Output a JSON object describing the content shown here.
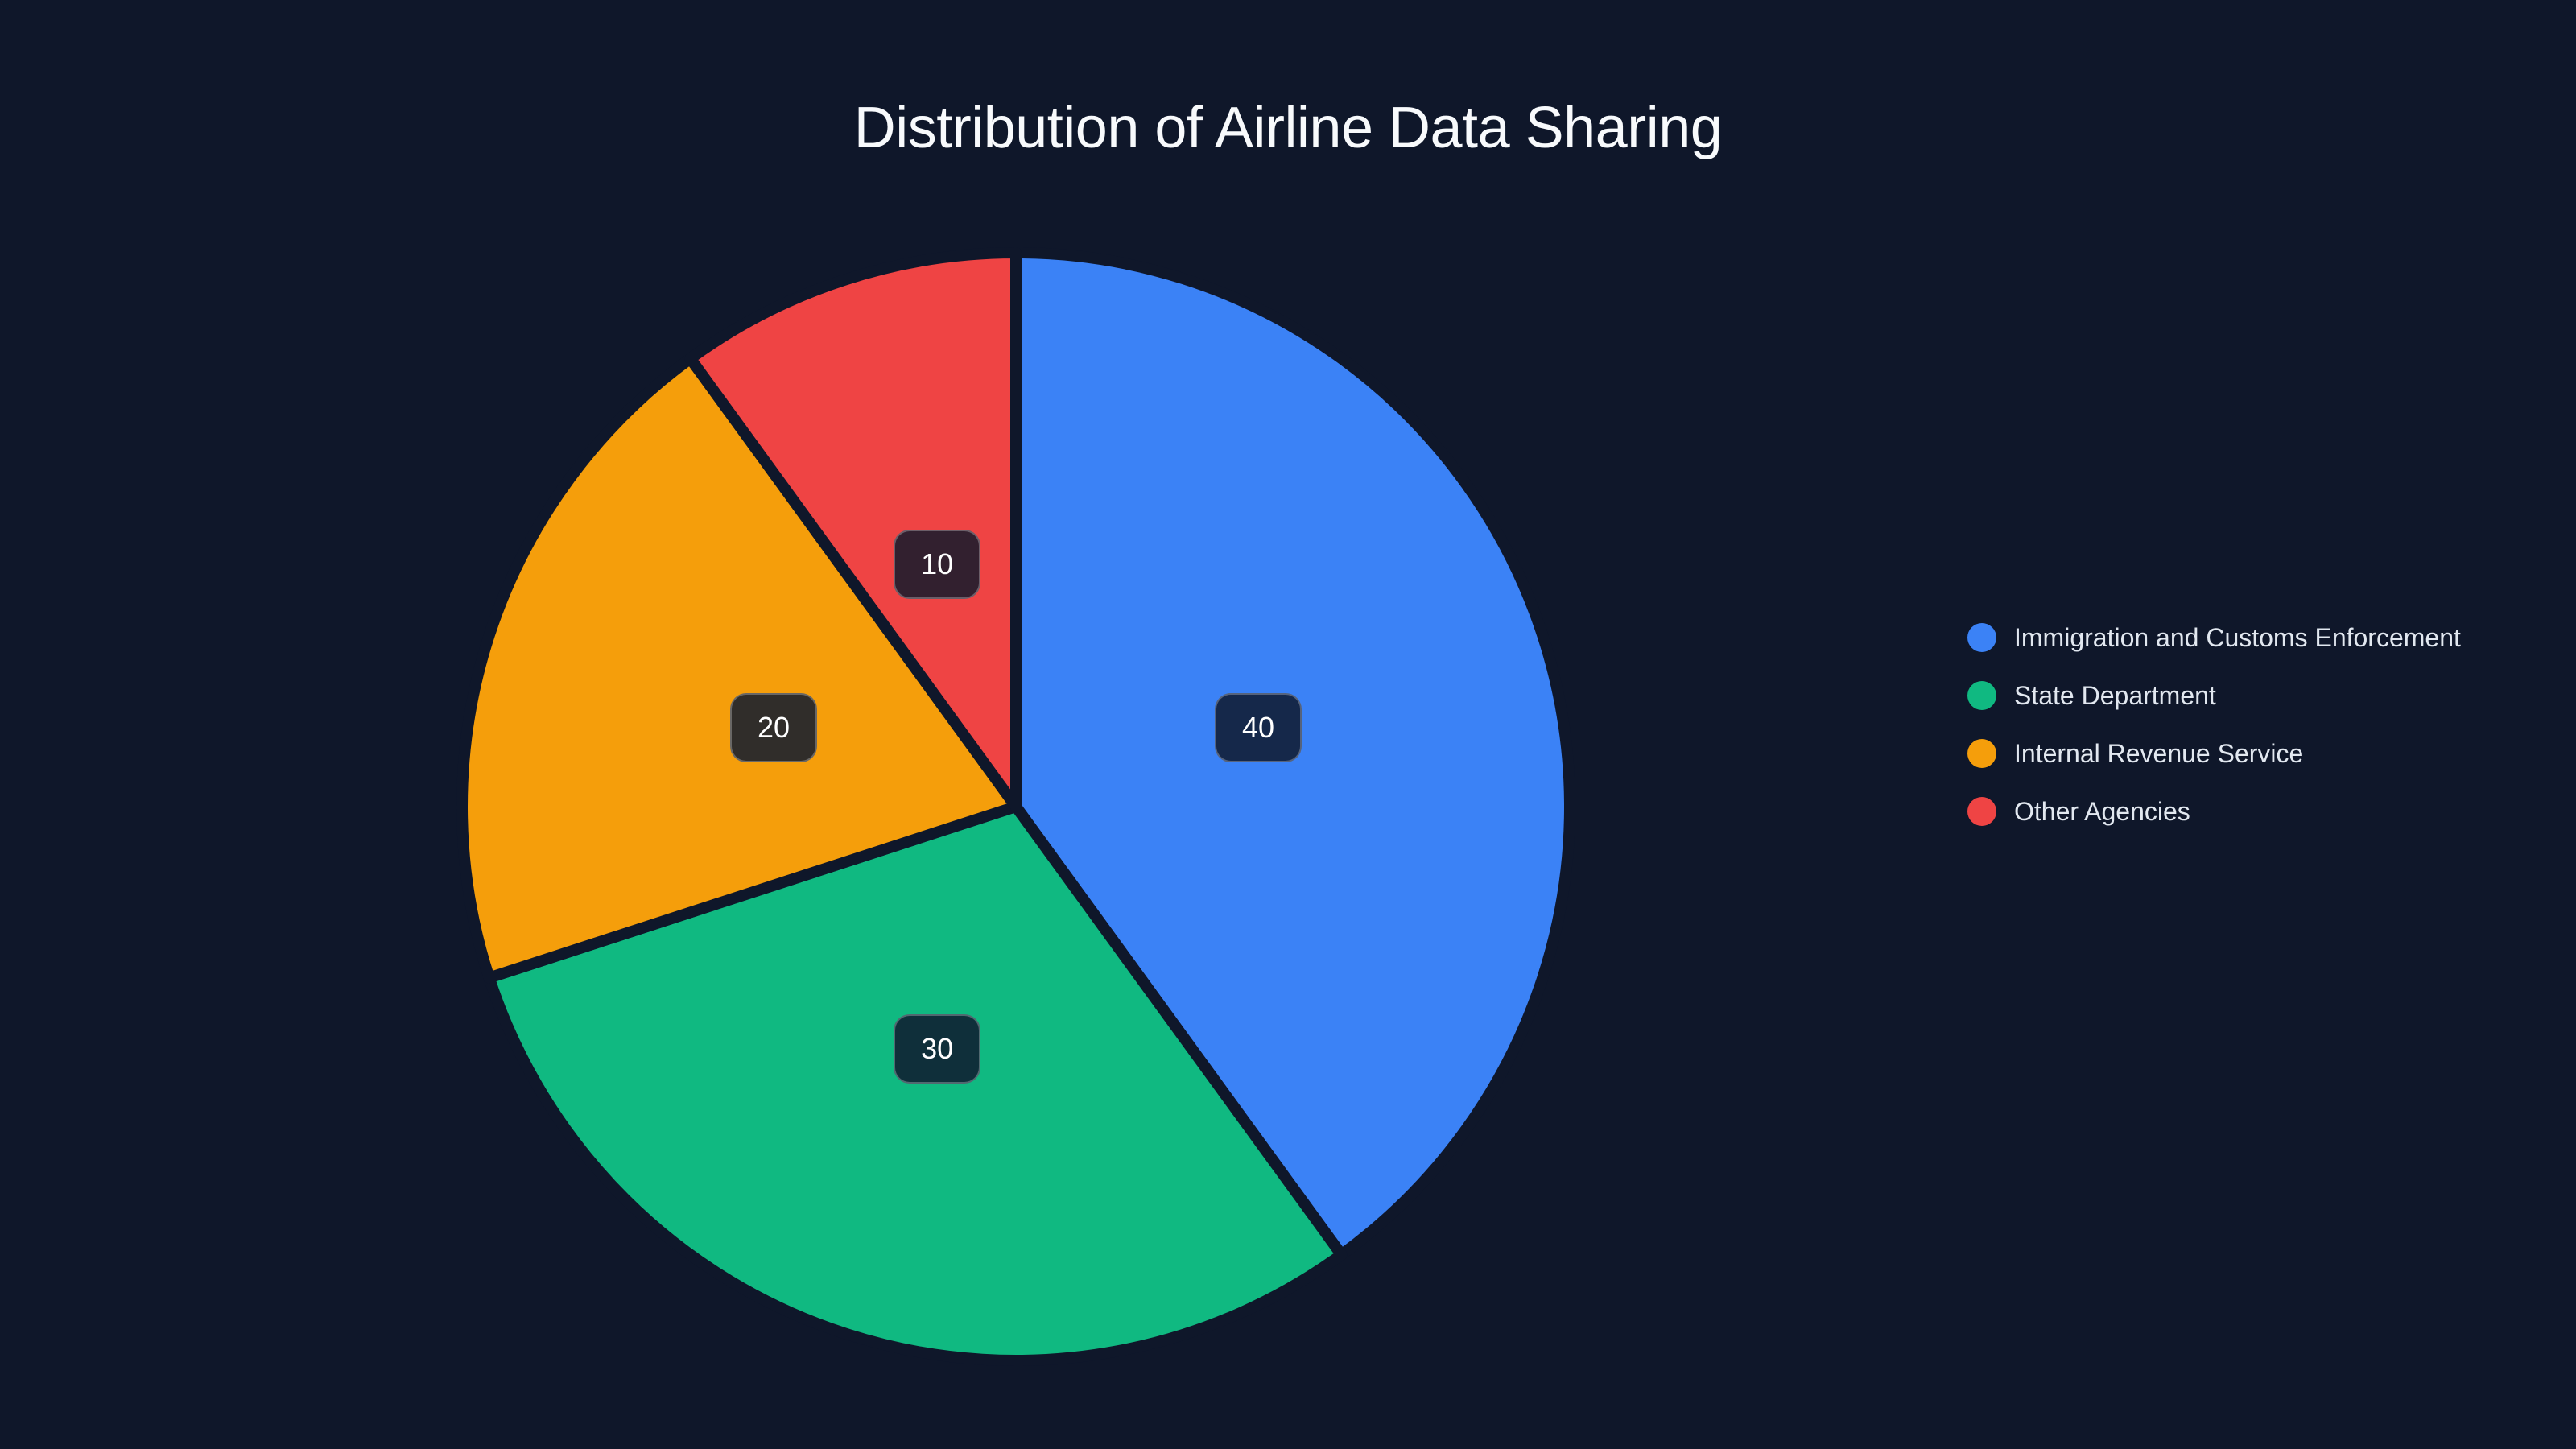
{
  "chart_data": {
    "type": "pie",
    "title": "Distribution of Airline Data Sharing",
    "categories": [
      "Immigration and Customs Enforcement",
      "State Department",
      "Internal Revenue Service",
      "Other Agencies"
    ],
    "values": [
      40,
      30,
      20,
      10
    ],
    "colors": [
      "#3b82f6",
      "#10b981",
      "#f59e0b",
      "#ef4444"
    ],
    "label_box_colors": [
      "#15284a",
      "#0f2f3a",
      "#302d2a",
      "#32202f"
    ],
    "start_angle_deg": 0,
    "direction": "clockwise",
    "legend_position": "right",
    "data_labels": [
      "40",
      "30",
      "20",
      "10"
    ]
  },
  "title": "Distribution of Airline Data Sharing",
  "legend": {
    "items": [
      {
        "label": "Immigration and Customs Enforcement",
        "color": "#3b82f6"
      },
      {
        "label": "State Department",
        "color": "#10b981"
      },
      {
        "label": "Internal Revenue Service",
        "color": "#f59e0b"
      },
      {
        "label": "Other Agencies",
        "color": "#ef4444"
      }
    ]
  },
  "labels": [
    "40",
    "30",
    "20",
    "10"
  ]
}
